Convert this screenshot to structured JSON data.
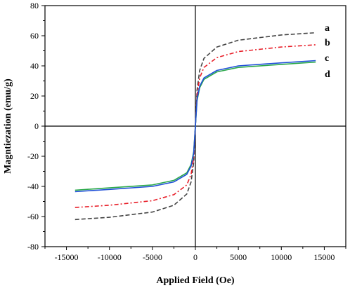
{
  "chart_data": {
    "type": "line",
    "title": "",
    "xlabel": "Applied Field (Oe)",
    "ylabel": "Magntiezation (emu/g)",
    "xlim": [
      -17500,
      17500
    ],
    "ylim": [
      -80,
      80
    ],
    "x_ticks": [
      -15000,
      -10000,
      -5000,
      0,
      5000,
      10000,
      15000
    ],
    "y_ticks": [
      -80,
      -60,
      -40,
      -20,
      0,
      20,
      40,
      60,
      80
    ],
    "x_tick_labels": [
      "-15000",
      "-10000",
      "-5000",
      "0",
      "5000",
      "10000",
      "15000"
    ],
    "y_tick_labels": [
      "-80",
      "-60",
      "-40",
      "-20",
      "0",
      "20",
      "40",
      "60",
      "80"
    ],
    "grid": false,
    "x_range_data": [
      -14000,
      14000
    ],
    "series": [
      {
        "name": "a",
        "ms": 62,
        "color": "#444444",
        "dash": "6,3",
        "x": [
          -14000,
          -10000,
          -5000,
          -2500,
          -1000,
          -500,
          -200,
          0,
          200,
          500,
          1000,
          2500,
          5000,
          10000,
          14000
        ],
        "y": [
          -62,
          -60.5,
          -57,
          -52.5,
          -45,
          -37,
          -24,
          0,
          24,
          37,
          45,
          52.5,
          57,
          60.5,
          62
        ]
      },
      {
        "name": "b",
        "ms": 54,
        "color": "#e8202a",
        "dash": "6,3,2,3",
        "x": [
          -14000,
          -10000,
          -5000,
          -2500,
          -1000,
          -500,
          -200,
          0,
          200,
          500,
          1000,
          2500,
          5000,
          10000,
          14000
        ],
        "y": [
          -54,
          -52.5,
          -49.5,
          -45.5,
          -39,
          -32,
          -21,
          0,
          21,
          32,
          39,
          45.5,
          49.5,
          52.5,
          54
        ]
      },
      {
        "name": "c",
        "ms": 43,
        "color": "#2aa84a",
        "dash": "",
        "x": [
          -14000,
          -10000,
          -5000,
          -2500,
          -1000,
          -500,
          -200,
          0,
          200,
          500,
          1000,
          2500,
          5000,
          10000,
          14000
        ],
        "y": [
          -42.5,
          -41,
          -39,
          -36,
          -31,
          -25.5,
          -17,
          0,
          17,
          25.5,
          31,
          36,
          39,
          41,
          42.5
        ]
      },
      {
        "name": "d",
        "ms": 43,
        "color": "#1f4fd8",
        "dash": "",
        "x": [
          -14000,
          -10000,
          -5000,
          -2500,
          -1000,
          -500,
          -200,
          0,
          200,
          500,
          1000,
          2500,
          5000,
          10000,
          14000
        ],
        "y": [
          -43.5,
          -42,
          -40,
          -37,
          -32,
          -26.5,
          -18,
          0,
          18,
          26.5,
          32,
          37,
          40,
          42,
          43.5
        ]
      }
    ],
    "curve_labels": [
      "a",
      "b",
      "c",
      "d"
    ]
  }
}
